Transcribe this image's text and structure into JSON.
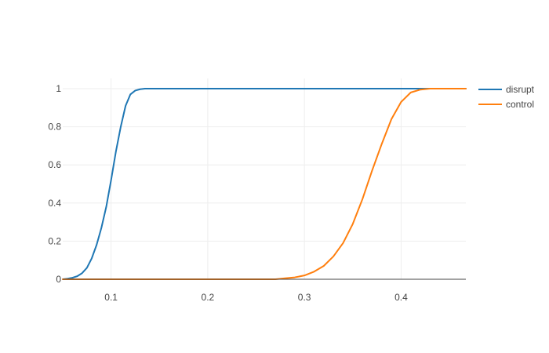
{
  "chart_data": {
    "type": "line",
    "title": "",
    "xlabel": "",
    "ylabel": "",
    "xlim": [
      0.05,
      0.467
    ],
    "ylim": [
      0,
      1.05
    ],
    "x_ticks": [
      0.1,
      0.2,
      0.3,
      0.4
    ],
    "x_tick_labels": [
      "0.1",
      "0.2",
      "0.3",
      "0.4"
    ],
    "y_ticks": [
      0,
      0.2,
      0.4,
      0.6,
      0.8,
      1
    ],
    "y_tick_labels": [
      "0",
      "0.2",
      "0.4",
      "0.6",
      "0.8",
      "1"
    ],
    "grid": true,
    "legend": "right",
    "series": [
      {
        "name": "disrupt",
        "color": "#1f77b4",
        "x": [
          0.05,
          0.055,
          0.06,
          0.065,
          0.07,
          0.075,
          0.08,
          0.085,
          0.09,
          0.095,
          0.1,
          0.105,
          0.11,
          0.115,
          0.12,
          0.125,
          0.13,
          0.135,
          0.14,
          0.15,
          0.2,
          0.3,
          0.4,
          0.467
        ],
        "y": [
          0.0,
          0.003,
          0.008,
          0.016,
          0.032,
          0.06,
          0.11,
          0.18,
          0.27,
          0.38,
          0.52,
          0.67,
          0.8,
          0.91,
          0.97,
          0.99,
          0.997,
          1.0,
          1.0,
          1.0,
          1.0,
          1.0,
          1.0,
          1.0
        ]
      },
      {
        "name": "control",
        "color": "#ff7f0e",
        "x": [
          0.05,
          0.1,
          0.2,
          0.27,
          0.28,
          0.29,
          0.3,
          0.31,
          0.32,
          0.33,
          0.34,
          0.35,
          0.36,
          0.37,
          0.38,
          0.39,
          0.4,
          0.41,
          0.42,
          0.43,
          0.44,
          0.467
        ],
        "y": [
          0.0,
          0.0,
          0.0,
          0.0,
          0.005,
          0.01,
          0.02,
          0.04,
          0.07,
          0.12,
          0.19,
          0.29,
          0.42,
          0.57,
          0.71,
          0.84,
          0.93,
          0.98,
          0.995,
          1.0,
          1.0,
          1.0
        ]
      }
    ]
  }
}
